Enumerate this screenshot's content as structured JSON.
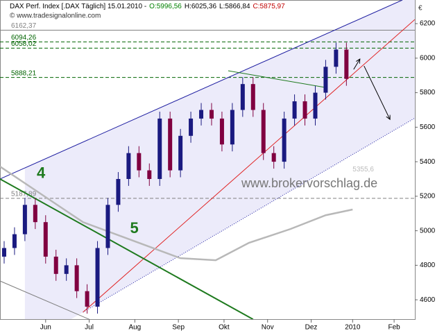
{
  "chart_data": {
    "type": "candlestick",
    "title": "DAX Perf. Index [.DAX Täglich] 15.01.2010 -",
    "quote": [
      {
        "label": "O:5996,56",
        "color": "#008000"
      },
      {
        "label": "H:6025,36",
        "color": "#000000"
      },
      {
        "label": "L:5866,84",
        "color": "#000000"
      },
      {
        "label": "C:5875,97",
        "color": "#c00000"
      }
    ],
    "copyright": "© www.tradesignalonline.com",
    "watermark": "www.brokervorschlag.de",
    "currency": "€",
    "wave_labels": [
      {
        "label": "4",
        "x": 5,
        "y": 5330
      },
      {
        "label": "5",
        "x": 50,
        "y": 5010
      }
    ],
    "x": [
      2,
      7,
      12,
      17,
      22,
      27,
      32,
      37,
      42,
      47,
      52,
      57,
      62,
      67,
      72,
      77,
      82,
      87,
      92,
      97,
      102,
      107,
      112,
      117,
      122,
      127,
      132,
      137,
      142,
      147,
      152,
      157,
      162,
      167
    ],
    "open": [
      4850,
      4900,
      4980,
      5150,
      5050,
      4850,
      4750,
      4800,
      4650,
      4560,
      4900,
      5150,
      5300,
      5450,
      5350,
      5300,
      5650,
      5350,
      5550,
      5650,
      5700,
      5650,
      5500,
      5700,
      5850,
      5700,
      5450,
      5400,
      5650,
      5750,
      5650,
      5800,
      5950,
      6050
    ],
    "high": [
      4940,
      5020,
      5190,
      5190,
      5090,
      4890,
      4840,
      4840,
      4690,
      4940,
      5190,
      5340,
      5490,
      5490,
      5390,
      5690,
      5690,
      5590,
      5690,
      5740,
      5740,
      5690,
      5740,
      5890,
      5890,
      5740,
      5490,
      5690,
      5790,
      5790,
      5840,
      5990,
      6090,
      6090
    ],
    "low": [
      4810,
      4860,
      4940,
      5010,
      4810,
      4710,
      4710,
      4610,
      4520,
      4520,
      4860,
      5110,
      5260,
      5310,
      5260,
      5260,
      5310,
      5310,
      5510,
      5610,
      5610,
      5460,
      5460,
      5660,
      5660,
      5410,
      5360,
      5360,
      5610,
      5610,
      5610,
      5760,
      5910,
      5840
    ],
    "close": [
      4900,
      4980,
      5150,
      5050,
      4850,
      4750,
      4800,
      4650,
      4560,
      4900,
      5150,
      5300,
      5450,
      5350,
      5300,
      5650,
      5350,
      5550,
      5650,
      5700,
      5650,
      5500,
      5700,
      5850,
      5700,
      5450,
      5400,
      5650,
      5750,
      5650,
      5800,
      5950,
      6050,
      5880
    ],
    "up_color": "#1a1a80",
    "down_color": "#800040",
    "xlim": [
      0,
      200
    ],
    "ylim": [
      4488,
      6337
    ],
    "xticks": [
      {
        "value": 22,
        "label": "Jun"
      },
      {
        "value": 43,
        "label": "Jul"
      },
      {
        "value": 65,
        "label": "Aug"
      },
      {
        "value": 86,
        "label": "Sep"
      },
      {
        "value": 108,
        "label": "Okt"
      },
      {
        "value": 129,
        "label": "Nov"
      },
      {
        "value": 150,
        "label": "Dez"
      },
      {
        "value": 170,
        "label": "2010"
      },
      {
        "value": 190,
        "label": "Feb"
      }
    ],
    "yticks": [
      4600,
      4800,
      5000,
      5200,
      5400,
      5600,
      5800,
      6000,
      6200
    ],
    "levels": [
      {
        "value": 6162.37,
        "label": "6162,37",
        "color": "#808080",
        "dashed": false
      },
      {
        "value": 6094.26,
        "label": "6094,26",
        "color": "#006400",
        "dashed": true
      },
      {
        "value": 6058.02,
        "label": "6058,02",
        "color": "#006400",
        "dashed": true
      },
      {
        "value": 5888.21,
        "label": "5888,21",
        "color": "#006400",
        "dashed": true
      },
      {
        "value": 5187.89,
        "label": "5187,89",
        "color": "#808080",
        "dashed": true
      }
    ],
    "channel_label": {
      "label": "5355,6",
      "x": 170,
      "y": 5355.6
    },
    "lines": [
      {
        "points": [
          [
            0,
            5300
          ],
          [
            194,
            6337
          ]
        ],
        "color": "#1c1ca0",
        "width": 1,
        "dashed": false
      },
      {
        "points": [
          [
            40,
            4528
          ],
          [
            200,
            5653
          ]
        ],
        "color": "#1c1ca0",
        "width": 1,
        "dashed": true
      },
      {
        "points": [
          [
            40,
            4528
          ],
          [
            200,
            6224
          ]
        ],
        "color": "#e02020",
        "width": 1,
        "dashed": false
      },
      {
        "points": [
          [
            0,
            5300
          ],
          [
            122,
            4487
          ]
        ],
        "color": "#1e7a1e",
        "width": 2,
        "dashed": false
      },
      {
        "points": [
          [
            0,
            4709
          ],
          [
            43,
            4487
          ]
        ],
        "color": "#808080",
        "width": 1,
        "dashed": false
      },
      {
        "points": [
          [
            110,
            5927
          ],
          [
            157,
            5830
          ]
        ],
        "color": "#1e7a1e",
        "width": 1,
        "dashed": false
      },
      {
        "points": [
          [
            0,
            5372
          ],
          [
            20,
            5211
          ],
          [
            40,
            5050
          ],
          [
            67,
            4930
          ],
          [
            87,
            4841
          ],
          [
            104,
            4829
          ],
          [
            120,
            4930
          ],
          [
            140,
            5010
          ],
          [
            157,
            5090
          ],
          [
            170,
            5123
          ]
        ],
        "color": "#b8b8b8",
        "width": 2.5,
        "dashed": false
      }
    ],
    "arrows": [
      {
        "points": [
          [
            175.5,
            5955
          ],
          [
            188,
            5645
          ]
        ]
      },
      {
        "points": [
          [
            170.5,
            5935
          ],
          [
            173.5,
            5995
          ]
        ]
      }
    ]
  }
}
